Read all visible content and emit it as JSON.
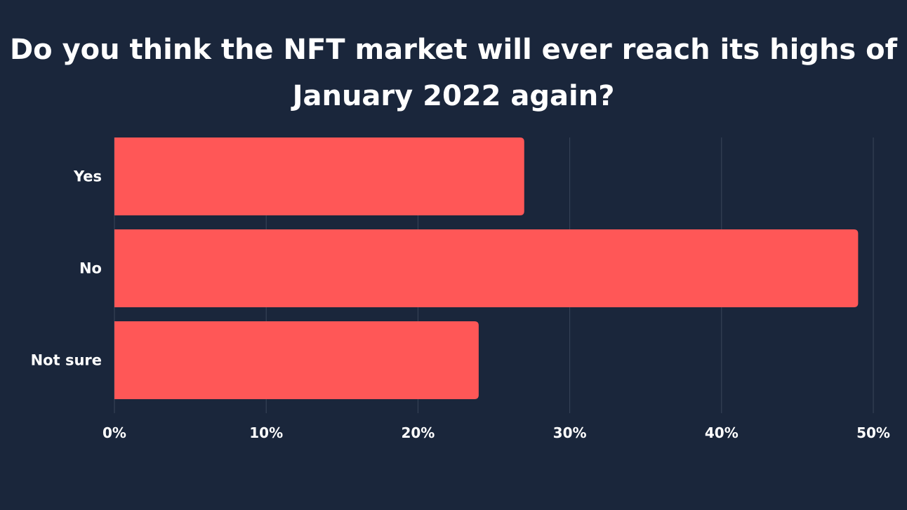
{
  "chart_data": {
    "type": "bar",
    "orientation": "horizontal",
    "title_lines": [
      "Do you think the NFT market will ever reach its highs of",
      "January 2022 again?"
    ],
    "categories": [
      "Yes",
      "No",
      "Not sure"
    ],
    "values": [
      27,
      49,
      24
    ],
    "x_ticks": [
      "0%",
      "10%",
      "20%",
      "30%",
      "40%",
      "50%"
    ],
    "x_tick_values": [
      0,
      10,
      20,
      30,
      40,
      50
    ],
    "xlim": [
      0,
      50
    ],
    "grid": true,
    "bar_color": "#ff5757",
    "grid_color": "#3a4659",
    "background_color": "#1a263b",
    "text_color": "#ffffff"
  }
}
